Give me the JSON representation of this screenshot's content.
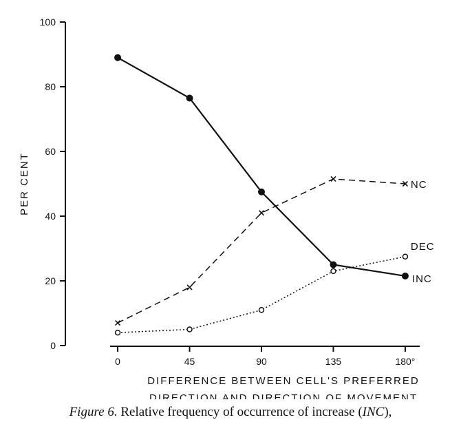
{
  "chart_data": {
    "type": "line",
    "x": [
      0,
      45,
      90,
      135,
      180
    ],
    "xlim": [
      -22,
      202
    ],
    "ylim": [
      0,
      100
    ],
    "x_tick_labels": [
      "0",
      "45",
      "90",
      "135",
      "180°"
    ],
    "y_ticks": [
      0,
      20,
      40,
      60,
      80,
      100
    ],
    "ylabel": "PER CENT",
    "xlabel_line1": "DIFFERENCE BETWEEN CELL'S PREFERRED",
    "xlabel_line2": "DIRECTION AND DIRECTION OF MOVEMENT",
    "grid": false,
    "series": [
      {
        "name": "INC",
        "values": [
          89,
          76.5,
          47.5,
          25,
          21.5
        ],
        "line": "solid",
        "marker": "filled-circle"
      },
      {
        "name": "NC",
        "values": [
          7,
          18,
          41,
          51.5,
          50
        ],
        "line": "dashed",
        "marker": "cross"
      },
      {
        "name": "DEC",
        "values": [
          4,
          5,
          11,
          23,
          27.5
        ],
        "line": "dotted",
        "marker": "open-circle"
      }
    ]
  },
  "caption": {
    "figure_label": "Figure 6.",
    "text_before": " Relative frequency of occurrence of increase (",
    "abbr": "INC",
    "text_after": "),"
  }
}
